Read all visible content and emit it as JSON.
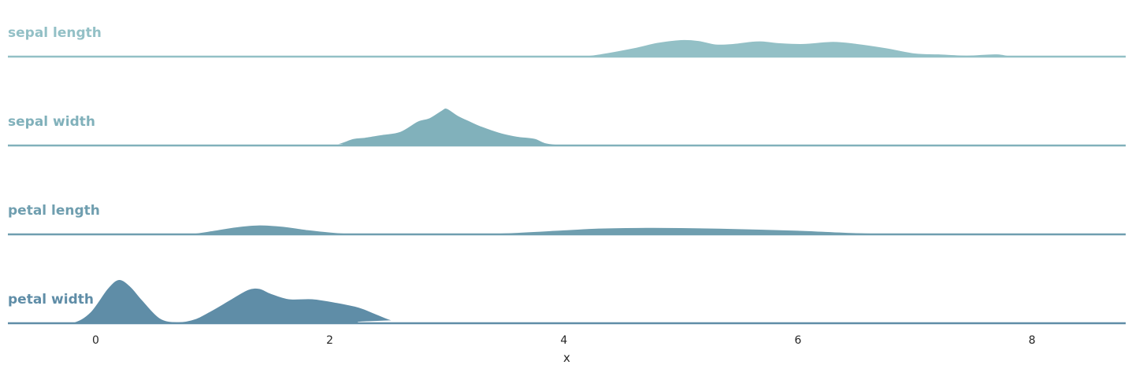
{
  "chart_data": {
    "type": "area",
    "subtype": "ridgeline-kde",
    "title": "",
    "xlabel": "x",
    "ylabel": "",
    "xlim": [
      -0.75,
      8.8
    ],
    "xticks": [
      0,
      2,
      4,
      6,
      8
    ],
    "grid": false,
    "legend": "none",
    "series": [
      {
        "name": "sepal length",
        "color": "#93c0c6",
        "x": [
          -0.75,
          4.0,
          4.1,
          4.3,
          4.6,
          4.8,
          5.0,
          5.15,
          5.3,
          5.45,
          5.6,
          5.7,
          5.85,
          6.05,
          6.3,
          6.5,
          6.75,
          7.0,
          7.2,
          7.45,
          7.7,
          7.95,
          8.8
        ],
        "density": [
          0,
          0,
          0.01,
          0.16,
          0.52,
          0.82,
          0.98,
          0.93,
          0.73,
          0.76,
          0.88,
          0.9,
          0.8,
          0.76,
          0.88,
          0.76,
          0.52,
          0.22,
          0.17,
          0.1,
          0.17,
          0,
          0
        ]
      },
      {
        "name": "sepal width",
        "color": "#81b1bb",
        "x": [
          -0.75,
          1.85,
          2.05,
          2.2,
          2.3,
          2.45,
          2.6,
          2.75,
          2.85,
          2.95,
          3.0,
          3.1,
          3.2,
          3.3,
          3.45,
          3.6,
          3.75,
          3.85,
          4.0,
          4.25,
          4.45,
          8.8
        ],
        "density": [
          0,
          0,
          0.09,
          0.41,
          0.48,
          0.64,
          0.81,
          1.39,
          1.58,
          1.99,
          2.12,
          1.7,
          1.39,
          1.1,
          0.76,
          0.54,
          0.42,
          0.16,
          0.06,
          0.03,
          0,
          0
        ]
      },
      {
        "name": "petal length",
        "color": "#6f9eaf",
        "x": [
          -0.75,
          0.6,
          0.8,
          1.0,
          1.2,
          1.4,
          1.6,
          1.8,
          2.0,
          2.3,
          2.6,
          3.0,
          3.5,
          4.0,
          4.3,
          4.7,
          5.0,
          5.5,
          6.0,
          6.5,
          7.0,
          7.5,
          8.8
        ],
        "density": [
          0,
          0,
          0.05,
          0.23,
          0.44,
          0.55,
          0.47,
          0.29,
          0.15,
          0.02,
          0.01,
          0.02,
          0.1,
          0.27,
          0.37,
          0.41,
          0.4,
          0.34,
          0.25,
          0.11,
          0.04,
          0.01,
          0
        ]
      },
      {
        "name": "petal width",
        "color": "#5f8da7",
        "x": [
          -0.75,
          -0.4,
          -0.2,
          -0.05,
          0.1,
          0.2,
          0.3,
          0.4,
          0.55,
          0.7,
          0.85,
          1.0,
          1.15,
          1.3,
          1.4,
          1.5,
          1.65,
          1.85,
          2.05,
          2.25,
          2.4,
          2.55,
          2.75,
          8.8
        ],
        "density": [
          0,
          0,
          0.05,
          0.63,
          1.98,
          2.49,
          2.09,
          1.33,
          0.31,
          0.1,
          0.27,
          0.78,
          1.36,
          1.92,
          1.98,
          1.7,
          1.4,
          1.4,
          1.2,
          0.92,
          0.53,
          0.16,
          0,
          0
        ]
      }
    ]
  }
}
